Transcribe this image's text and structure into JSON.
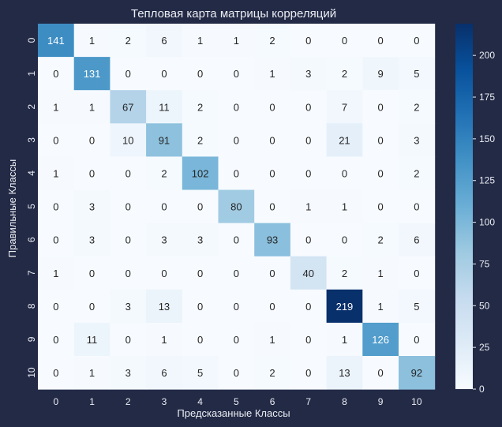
{
  "chart_data": {
    "type": "heatmap",
    "title": "Тепловая карта матрицы корреляций",
    "xlabel": "Предсказанные Классы",
    "ylabel": "Правильные Классы",
    "x_categories": [
      "0",
      "1",
      "2",
      "3",
      "4",
      "5",
      "6",
      "7",
      "8",
      "9",
      "10"
    ],
    "y_categories": [
      "0",
      "1",
      "2",
      "3",
      "4",
      "5",
      "6",
      "7",
      "8",
      "9",
      "10"
    ],
    "values": [
      [
        141,
        1,
        2,
        6,
        1,
        1,
        2,
        0,
        0,
        0,
        0
      ],
      [
        0,
        131,
        0,
        0,
        0,
        0,
        1,
        3,
        2,
        9,
        5
      ],
      [
        1,
        1,
        67,
        11,
        2,
        0,
        0,
        0,
        7,
        0,
        2
      ],
      [
        0,
        0,
        10,
        91,
        2,
        0,
        0,
        0,
        21,
        0,
        3
      ],
      [
        1,
        0,
        0,
        2,
        102,
        0,
        0,
        0,
        0,
        0,
        2
      ],
      [
        0,
        3,
        0,
        0,
        0,
        80,
        0,
        1,
        1,
        0,
        0
      ],
      [
        0,
        3,
        0,
        3,
        3,
        0,
        93,
        0,
        0,
        2,
        6
      ],
      [
        1,
        0,
        0,
        0,
        0,
        0,
        0,
        40,
        2,
        1,
        0
      ],
      [
        0,
        0,
        3,
        13,
        0,
        0,
        0,
        0,
        219,
        1,
        5
      ],
      [
        0,
        11,
        0,
        1,
        0,
        0,
        1,
        0,
        1,
        126,
        0
      ],
      [
        0,
        1,
        3,
        6,
        5,
        0,
        2,
        0,
        13,
        0,
        92
      ]
    ],
    "colorbar": {
      "min": 0,
      "max": 219,
      "ticks": [
        0,
        25,
        50,
        75,
        100,
        125,
        150,
        175,
        200
      ]
    },
    "colors": {
      "low": "#f7fbff",
      "high": "#08306b",
      "background": "#222a46",
      "text_light": "#ffffff",
      "text_dark": "#262626"
    }
  }
}
